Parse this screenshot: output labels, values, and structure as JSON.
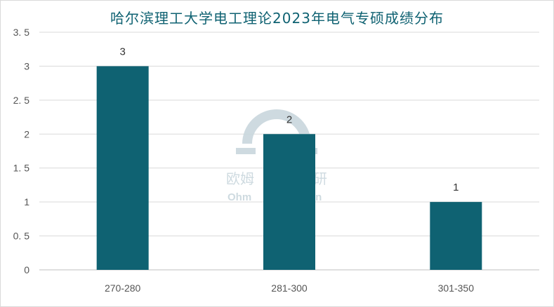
{
  "chart_data": {
    "type": "bar",
    "title": "哈尔滨理工大学电工理论2023年电气专硕成绩分布",
    "categories": [
      "270-280",
      "281-300",
      "301-350"
    ],
    "values": [
      3,
      2,
      1
    ],
    "data_labels": [
      "3",
      "2",
      "1"
    ],
    "y_ticks": [
      "0",
      "0. 5",
      "1",
      "1. 5",
      "2",
      "2. 5",
      "3",
      "3. 5"
    ],
    "ylim": [
      0,
      3.5
    ],
    "grid": true,
    "bar_color": "#0f6272",
    "xlabel": "",
    "ylabel": ""
  },
  "watermark": {
    "text_left": "欧姆",
    "text_right": "研",
    "sub_left": "Ohm",
    "sub_right": "on"
  }
}
